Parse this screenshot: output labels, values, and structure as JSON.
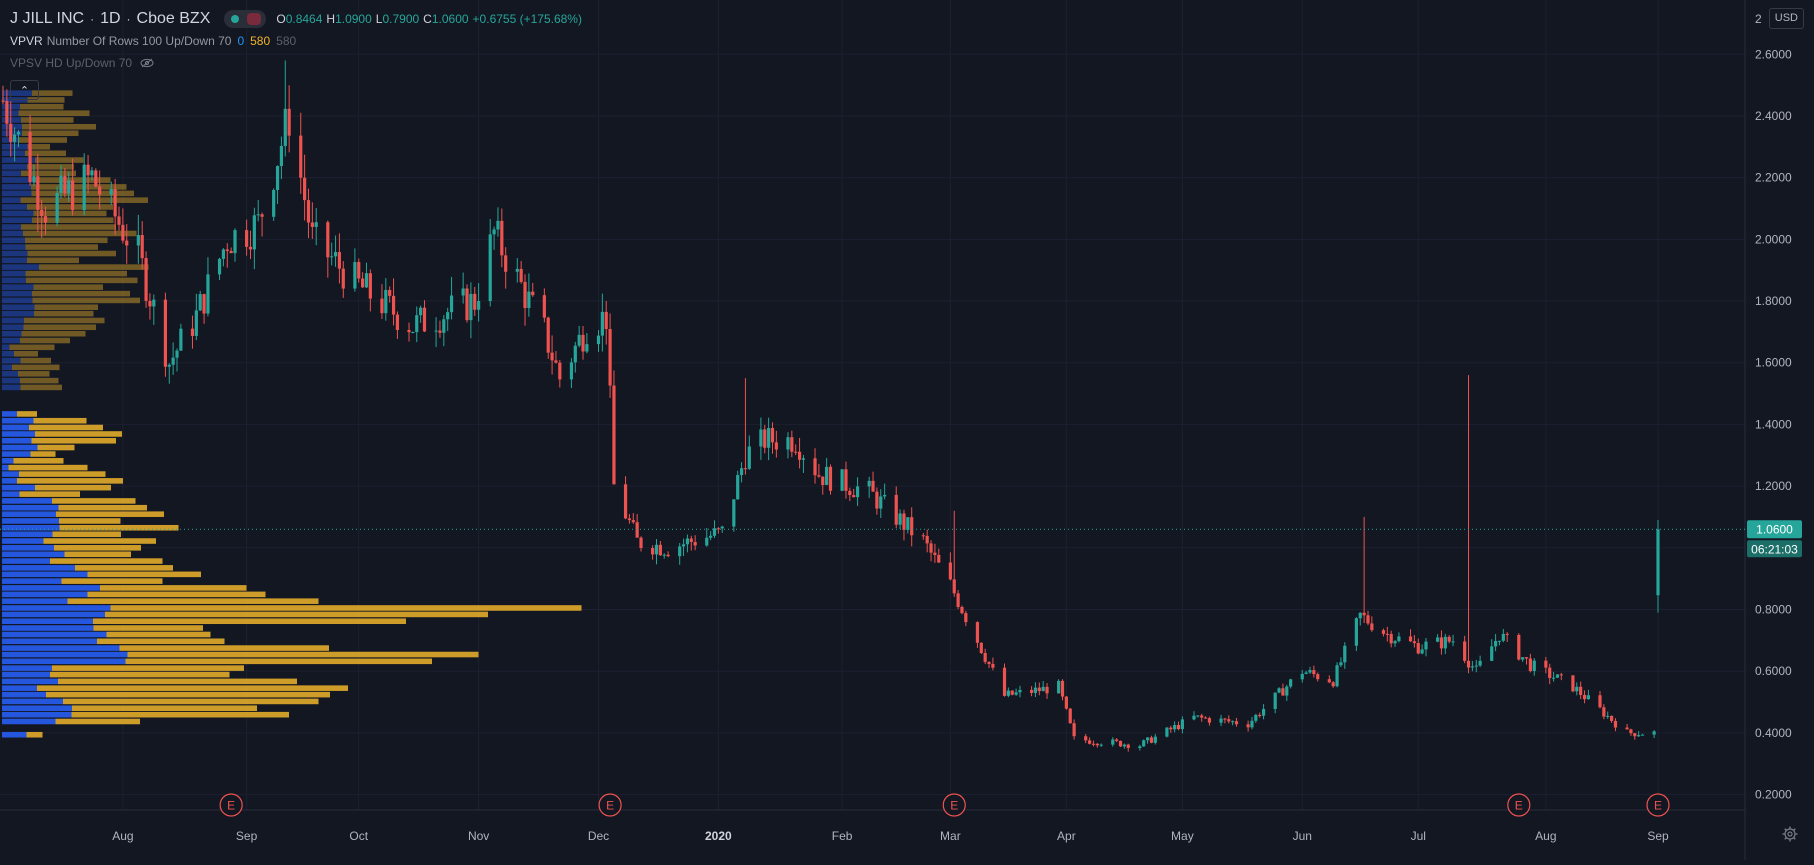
{
  "header": {
    "symbol": "J JILL INC",
    "interval": "1D",
    "exchange": "Cboe BZX",
    "open_label": "O",
    "open_value": "0.8464",
    "high_label": "H",
    "high_value": "1.0900",
    "low_label": "L",
    "low_value": "0.7900",
    "close_label": "C",
    "close_value": "1.0600",
    "change": "+0.6755 (+175.68%)"
  },
  "indicators": [
    {
      "name": "VPVR",
      "params": "Number Of Rows 100 Up/Down 70",
      "value_up": "0",
      "value_down": "580",
      "value_total": "580"
    },
    {
      "name": "VPSV HD Up/Down 70",
      "hidden": true
    }
  ],
  "currency": "USD",
  "icons": [
    "collapse-icon",
    "eye-off-icon",
    "gear-icon",
    "earnings-event-icon"
  ],
  "colors": {
    "background": "#131722",
    "up": "#26a69a",
    "down": "#ef5350",
    "volume_up": "#2962ff",
    "volume_down": "#f0b429",
    "earnings": "#ef5350"
  },
  "chart_data": {
    "type": "candlestick",
    "ylim": [
      0.15,
      2.75
    ],
    "y_ticks": [
      "2.6000",
      "2.4000",
      "2.2000",
      "2.0000",
      "1.8000",
      "1.6000",
      "1.4000",
      "1.2000",
      "1.0000",
      "0.8000",
      "0.6000",
      "0.4000",
      "0.2000"
    ],
    "y_tick_values": [
      2.6,
      2.4,
      2.2,
      2.0,
      1.8,
      1.6,
      1.4,
      1.2,
      1.0,
      0.8,
      0.6,
      0.4,
      0.2
    ],
    "y_top_clipped_label": "2",
    "x_ticks": [
      {
        "label": "Aug",
        "date": "2019-08-01",
        "bold": false
      },
      {
        "label": "Sep",
        "date": "2019-09-02",
        "bold": false
      },
      {
        "label": "Oct",
        "date": "2019-10-01",
        "bold": false
      },
      {
        "label": "Nov",
        "date": "2019-11-01",
        "bold": false
      },
      {
        "label": "Dec",
        "date": "2019-12-02",
        "bold": false
      },
      {
        "label": "2020",
        "date": "2020-01-02",
        "bold": true
      },
      {
        "label": "Feb",
        "date": "2020-02-03",
        "bold": false
      },
      {
        "label": "Mar",
        "date": "2020-03-02",
        "bold": false
      },
      {
        "label": "Apr",
        "date": "2020-04-01",
        "bold": false
      },
      {
        "label": "May",
        "date": "2020-05-01",
        "bold": false
      },
      {
        "label": "Jun",
        "date": "2020-06-01",
        "bold": false
      },
      {
        "label": "Jul",
        "date": "2020-07-01",
        "bold": false
      },
      {
        "label": "Aug",
        "date": "2020-08-03",
        "bold": false
      },
      {
        "label": "Sep",
        "date": "2020-09-01",
        "bold": false
      }
    ],
    "last_price": "1.0600",
    "last_price_value": 1.06,
    "countdown": "06:21:03",
    "earnings_markers": [
      {
        "label": "E",
        "date": "2019-08-29"
      },
      {
        "label": "E",
        "date": "2019-12-05"
      },
      {
        "label": "E",
        "date": "2020-03-03"
      },
      {
        "label": "E",
        "date": "2020-07-27"
      },
      {
        "label": "E",
        "date": "2020-09-01"
      }
    ],
    "anchors": [
      {
        "date": "2019-07-01",
        "close": 2.45
      },
      {
        "date": "2019-07-12",
        "close": 2.1
      },
      {
        "date": "2019-07-24",
        "close": 2.2
      },
      {
        "date": "2019-08-05",
        "close": 1.95
      },
      {
        "date": "2019-08-13",
        "close": 1.6
      },
      {
        "date": "2019-08-20",
        "close": 1.75
      },
      {
        "date": "2019-08-28",
        "close": 2.0
      },
      {
        "date": "2019-09-05",
        "close": 2.05
      },
      {
        "date": "2019-09-13",
        "close": 2.4
      },
      {
        "date": "2019-09-19",
        "close": 2.0
      },
      {
        "date": "2019-10-01",
        "close": 1.85
      },
      {
        "date": "2019-10-15",
        "close": 1.72
      },
      {
        "date": "2019-10-31",
        "close": 1.8
      },
      {
        "date": "2019-11-05",
        "close": 2.02
      },
      {
        "date": "2019-11-18",
        "close": 1.7
      },
      {
        "date": "2019-11-22",
        "close": 1.55
      },
      {
        "date": "2019-11-29",
        "close": 1.72
      },
      {
        "date": "2019-12-04",
        "close": 1.75
      },
      {
        "date": "2019-12-06",
        "close": 1.2
      },
      {
        "date": "2019-12-12",
        "close": 1.02
      },
      {
        "date": "2019-12-20",
        "close": 1.0
      },
      {
        "date": "2020-01-03",
        "close": 1.05
      },
      {
        "date": "2020-01-09",
        "close": 1.3
      },
      {
        "date": "2020-01-14",
        "close": 1.35
      },
      {
        "date": "2020-01-22",
        "close": 1.35
      },
      {
        "date": "2020-01-28",
        "close": 1.24
      },
      {
        "date": "2020-02-10",
        "close": 1.18
      },
      {
        "date": "2020-02-24",
        "close": 1.02
      },
      {
        "date": "2020-03-02",
        "close": 0.88
      },
      {
        "date": "2020-03-09",
        "close": 0.7
      },
      {
        "date": "2020-03-16",
        "close": 0.52
      },
      {
        "date": "2020-03-30",
        "close": 0.55
      },
      {
        "date": "2020-04-03",
        "close": 0.38
      },
      {
        "date": "2020-04-20",
        "close": 0.36
      },
      {
        "date": "2020-05-04",
        "close": 0.45
      },
      {
        "date": "2020-05-18",
        "close": 0.43
      },
      {
        "date": "2020-06-01",
        "close": 0.6
      },
      {
        "date": "2020-06-09",
        "close": 0.57
      },
      {
        "date": "2020-06-16",
        "close": 0.78
      },
      {
        "date": "2020-06-23",
        "close": 0.72
      },
      {
        "date": "2020-07-01",
        "close": 0.68
      },
      {
        "date": "2020-07-10",
        "close": 0.7
      },
      {
        "date": "2020-07-16",
        "close": 0.6
      },
      {
        "date": "2020-07-22",
        "close": 0.72
      },
      {
        "date": "2020-07-30",
        "close": 0.62
      },
      {
        "date": "2020-08-10",
        "close": 0.55
      },
      {
        "date": "2020-08-24",
        "close": 0.4
      },
      {
        "date": "2020-08-31",
        "close": 0.4
      }
    ],
    "last_candle": {
      "date": "2020-09-01",
      "open": 0.8464,
      "high": 1.09,
      "low": 0.79,
      "close": 1.06
    },
    "spikes": [
      {
        "date": "2019-09-12",
        "high": 2.58
      },
      {
        "date": "2019-12-04",
        "high": 1.8
      },
      {
        "date": "2020-01-09",
        "high": 1.55
      },
      {
        "date": "2020-03-03",
        "high": 1.12
      },
      {
        "date": "2020-06-17",
        "high": 1.1
      },
      {
        "date": "2020-07-14",
        "high": 1.56
      }
    ],
    "volume_profile": {
      "price_min": 0.35,
      "price_max": 2.5,
      "rows": [
        [
          0.372,
          0.0,
          0.0
        ],
        [
          0.394,
          0.049,
          0.032
        ],
        [
          0.415,
          0.0,
          0.0
        ],
        [
          0.437,
          0.107,
          0.169
        ],
        [
          0.459,
          0.139,
          0.435
        ],
        [
          0.48,
          0.14,
          0.37
        ],
        [
          0.502,
          0.122,
          0.511
        ],
        [
          0.524,
          0.088,
          0.568
        ],
        [
          0.545,
          0.07,
          0.622
        ],
        [
          0.567,
          0.112,
          0.478
        ],
        [
          0.589,
          0.096,
          0.359
        ],
        [
          0.61,
          0.1,
          0.384
        ],
        [
          0.632,
          0.247,
          0.613
        ],
        [
          0.654,
          0.251,
          0.702
        ],
        [
          0.675,
          0.235,
          0.419
        ],
        [
          0.697,
          0.19,
          0.255
        ],
        [
          0.719,
          0.209,
          0.208
        ],
        [
          0.74,
          0.183,
          0.219
        ],
        [
          0.762,
          0.182,
          0.626
        ],
        [
          0.784,
          0.206,
          0.766
        ],
        [
          0.805,
          0.217,
          0.942
        ],
        [
          0.827,
          0.131,
          0.502
        ],
        [
          0.849,
          0.171,
          0.356
        ],
        [
          0.87,
          0.196,
          0.293
        ],
        [
          0.892,
          0.119,
          0.202
        ],
        [
          0.914,
          0.171,
          0.227
        ],
        [
          0.935,
          0.146,
          0.196
        ],
        [
          0.957,
          0.096,
          0.225
        ],
        [
          0.979,
          0.125,
          0.133
        ],
        [
          1.0,
          0.104,
          0.174
        ],
        [
          1.022,
          0.083,
          0.225
        ],
        [
          1.044,
          0.101,
          0.137
        ],
        [
          1.065,
          0.115,
          0.238
        ],
        [
          1.087,
          0.114,
          0.123
        ],
        [
          1.109,
          0.108,
          0.216
        ],
        [
          1.13,
          0.113,
          0.177
        ],
        [
          1.152,
          0.1,
          0.167
        ],
        [
          1.174,
          0.035,
          0.121
        ],
        [
          1.195,
          0.066,
          0.152
        ],
        [
          1.217,
          0.03,
          0.212
        ],
        [
          1.239,
          0.034,
          0.173
        ],
        [
          1.26,
          0.013,
          0.158
        ],
        [
          1.282,
          0.023,
          0.1
        ],
        [
          1.304,
          0.057,
          0.05
        ],
        [
          1.325,
          0.071,
          0.074
        ],
        [
          1.347,
          0.059,
          0.169
        ],
        [
          1.369,
          0.066,
          0.174
        ],
        [
          1.39,
          0.054,
          0.148
        ],
        [
          1.412,
          0.063,
          0.106
        ],
        [
          1.434,
          0.03,
          0.04
        ],
        [
          1.455,
          0.0,
          0.0
        ],
        [
          1.477,
          0.0,
          0.0
        ],
        [
          1.499,
          0.0,
          0.0
        ],
        [
          1.52,
          0.037,
          0.083
        ],
        [
          1.542,
          0.036,
          0.077
        ],
        [
          1.564,
          0.032,
          0.063
        ],
        [
          1.585,
          0.02,
          0.095
        ],
        [
          1.607,
          0.037,
          0.061
        ],
        [
          1.629,
          0.024,
          0.048
        ],
        [
          1.65,
          0.015,
          0.09
        ],
        [
          1.672,
          0.036,
          0.1
        ],
        [
          1.694,
          0.039,
          0.128
        ],
        [
          1.715,
          0.043,
          0.145
        ],
        [
          1.737,
          0.044,
          0.161
        ],
        [
          1.759,
          0.064,
          0.119
        ],
        [
          1.78,
          0.065,
          0.127
        ],
        [
          1.802,
          0.061,
          0.215
        ],
        [
          1.824,
          0.06,
          0.196
        ],
        [
          1.845,
          0.063,
          0.139
        ],
        [
          1.867,
          0.048,
          0.223
        ],
        [
          1.889,
          0.047,
          0.203
        ],
        [
          1.91,
          0.074,
          0.219
        ],
        [
          1.932,
          0.05,
          0.104
        ],
        [
          1.954,
          0.051,
          0.177
        ],
        [
          1.975,
          0.047,
          0.145
        ],
        [
          1.997,
          0.046,
          0.165
        ],
        [
          2.019,
          0.042,
          0.227
        ],
        [
          2.04,
          0.038,
          0.19
        ],
        [
          2.062,
          0.06,
          0.163
        ],
        [
          2.084,
          0.063,
          0.146
        ],
        [
          2.105,
          0.05,
          0.172
        ],
        [
          2.127,
          0.037,
          0.255
        ],
        [
          2.149,
          0.059,
          0.205
        ],
        [
          2.17,
          0.058,
          0.191
        ],
        [
          2.192,
          0.063,
          0.154
        ],
        [
          2.214,
          0.038,
          0.11
        ],
        [
          2.235,
          0.05,
          0.094
        ],
        [
          2.257,
          0.066,
          0.097
        ],
        [
          2.279,
          0.046,
          0.082
        ],
        [
          2.3,
          0.051,
          0.045
        ],
        [
          2.322,
          0.032,
          0.098
        ],
        [
          2.344,
          0.04,
          0.113
        ],
        [
          2.365,
          0.04,
          0.148
        ],
        [
          2.387,
          0.038,
          0.105
        ],
        [
          2.409,
          0.033,
          0.142
        ],
        [
          2.43,
          0.036,
          0.087
        ],
        [
          2.452,
          0.051,
          0.074
        ],
        [
          2.474,
          0.06,
          0.081
        ]
      ]
    }
  }
}
